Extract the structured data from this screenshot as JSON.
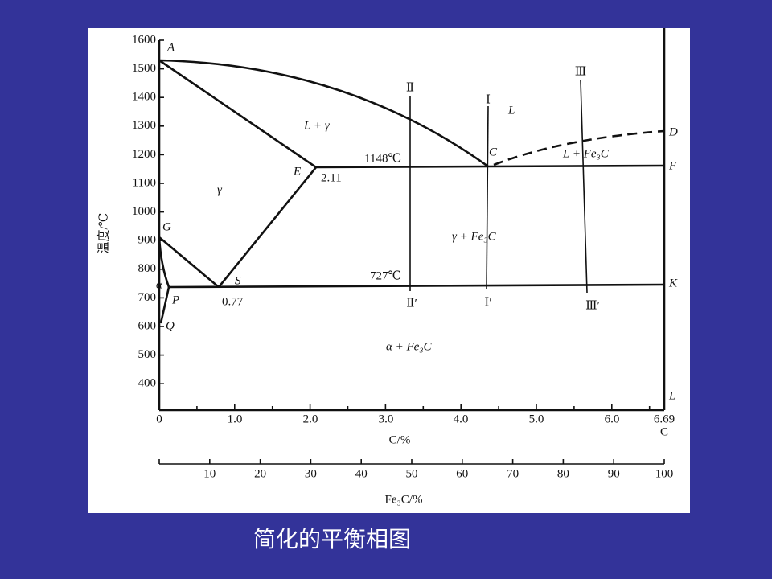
{
  "diagram": {
    "y_axis": {
      "label": "温度/℃",
      "ticks": [
        "1600",
        "1500",
        "1400",
        "1300",
        "1200",
        "1100",
        "1000",
        "900",
        "800",
        "700",
        "600",
        "500",
        "400"
      ]
    },
    "x_axis": {
      "label": "C/%",
      "ticks": [
        "0",
        "1.0",
        "2.0",
        "3.0",
        "4.0",
        "5.0",
        "6.0",
        "6.69"
      ],
      "end_label": "C"
    },
    "fe3c_axis": {
      "label": "Fe₃C/%",
      "ticks": [
        "10",
        "20",
        "30",
        "40",
        "50",
        "60",
        "70",
        "80",
        "90",
        "100"
      ]
    },
    "points": [
      "A",
      "E",
      "C",
      "D",
      "F",
      "G",
      "S",
      "K",
      "α",
      "P",
      "Q",
      "L"
    ],
    "regions": [
      "L",
      "L + γ",
      "γ",
      "L + Fe₃C",
      "γ + Fe₃C",
      "α + Fe₃C"
    ],
    "annotations": [
      "1148℃",
      "2.11",
      "727℃",
      "0.77"
    ],
    "sections": {
      "top": [
        "Ⅱ",
        "Ⅰ",
        "Ⅲ"
      ],
      "bottom": [
        "Ⅱ′",
        "Ⅰ′",
        "Ⅲ′"
      ]
    }
  },
  "caption": "简化的平衡相图"
}
